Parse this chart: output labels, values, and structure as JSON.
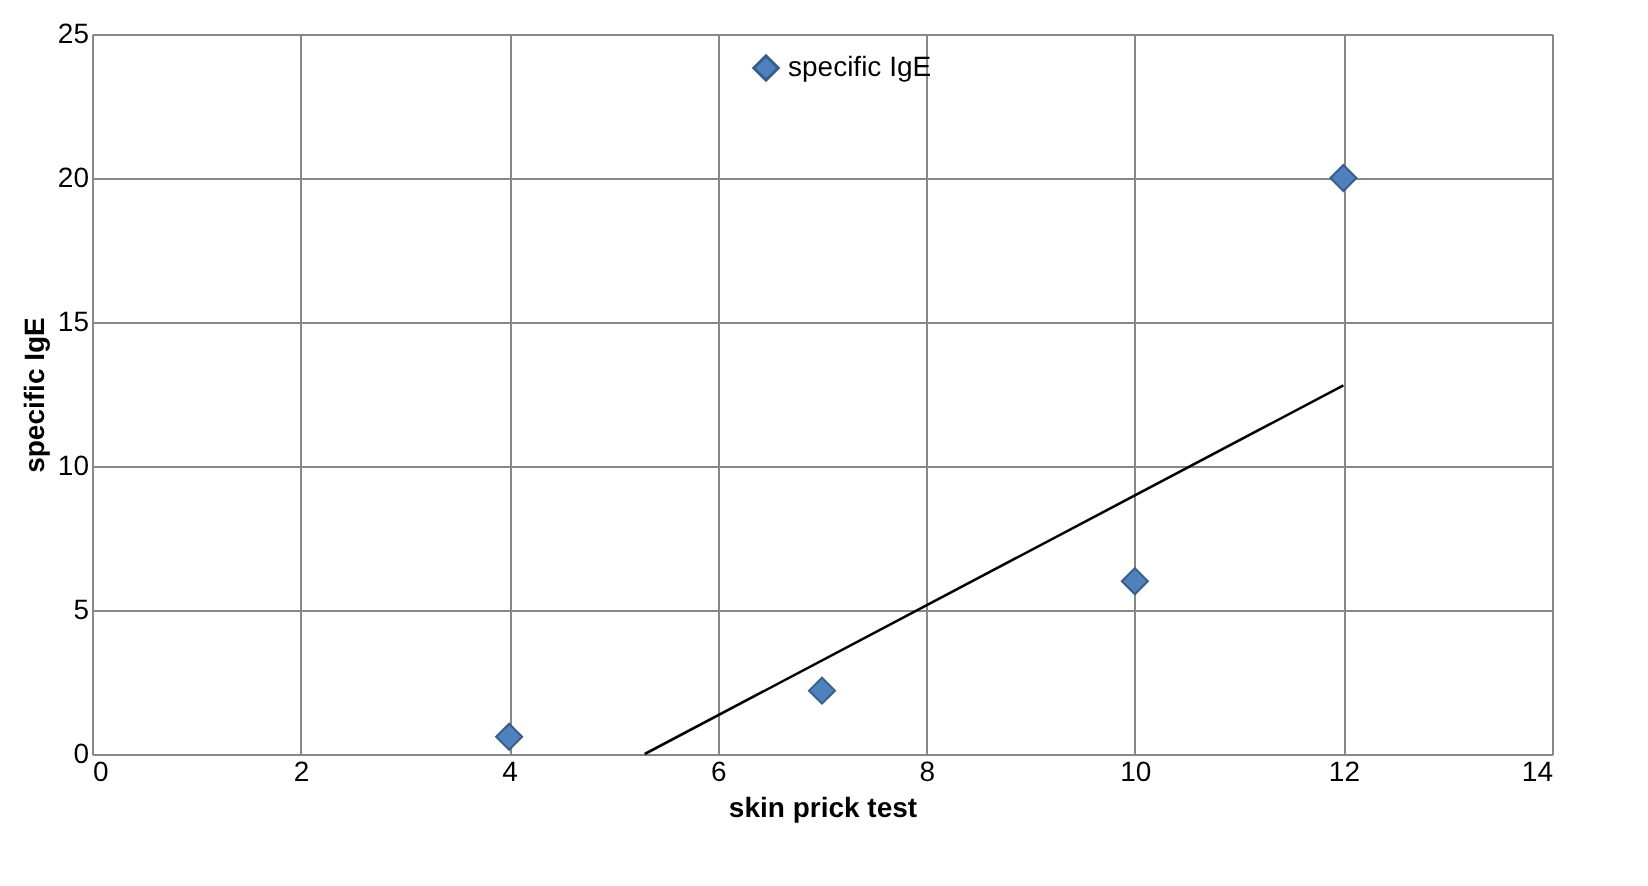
{
  "chart_data": {
    "type": "scatter",
    "xlabel": "skin prick test",
    "ylabel": "specific IgE",
    "series": [
      {
        "name": "specific IgE",
        "type": "scatter",
        "color": "#4f81bd",
        "marker": "diamond",
        "x": [
          4,
          7,
          10,
          12
        ],
        "values": [
          0.6,
          2.2,
          6,
          20
        ]
      },
      {
        "type": "line",
        "color": "#000000",
        "marker": "none",
        "x": [
          5.3,
          12
        ],
        "values": [
          0,
          12.8
        ]
      }
    ],
    "xlim": [
      0,
      14
    ],
    "xticks": [
      0,
      2,
      4,
      6,
      8,
      10,
      12,
      14
    ],
    "ylim": [
      0,
      25
    ],
    "yticks": [
      0,
      5,
      10,
      15,
      20,
      25
    ],
    "grid": true,
    "legend": "top"
  }
}
